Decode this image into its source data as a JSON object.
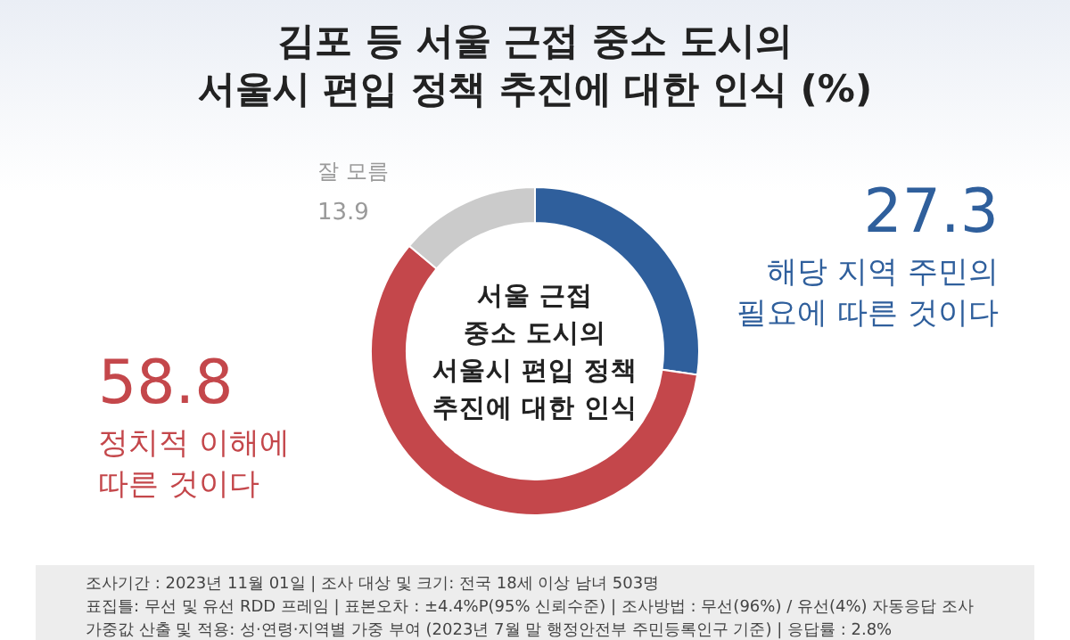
{
  "chart_data": {
    "type": "donut",
    "title": "김포 등 서울 근접 중소 도시의\n서울시 편입 정책 추진에 대한 인식 (%)",
    "categories": [
      "해당 지역 주민의\n필요에 따른 것이다",
      "정치적 이해에\n따른 것이다",
      "잘 모름"
    ],
    "values": [
      27.3,
      58.8,
      13.9
    ],
    "colors": [
      "#2f5f9c",
      "#c4474b",
      "#cbcbcb"
    ],
    "data_labels": true,
    "annotations": [
      "서울 근접\n중소 도시의\n서울시 편입 정책\n추진에 대한 인식",
      "조사기간 : 2023년 11월 01일 | 조사 대상 및 크기: 전국 18세 이상 남녀 503명",
      "표집틀: 무선 및 유선 RDD 프레임 | 표본오차 : ±4.4%P(95% 신뢰수준) | 조사방법 : 무선(96%) / 유선(4%) 자동응답 조사",
      "가중값 산출 및 적용: 성·연령·지역별 가중 부여 (2023년 7월 말 행정안전부 주민등록인구 기준) | 응답률 : 2.8%"
    ]
  }
}
